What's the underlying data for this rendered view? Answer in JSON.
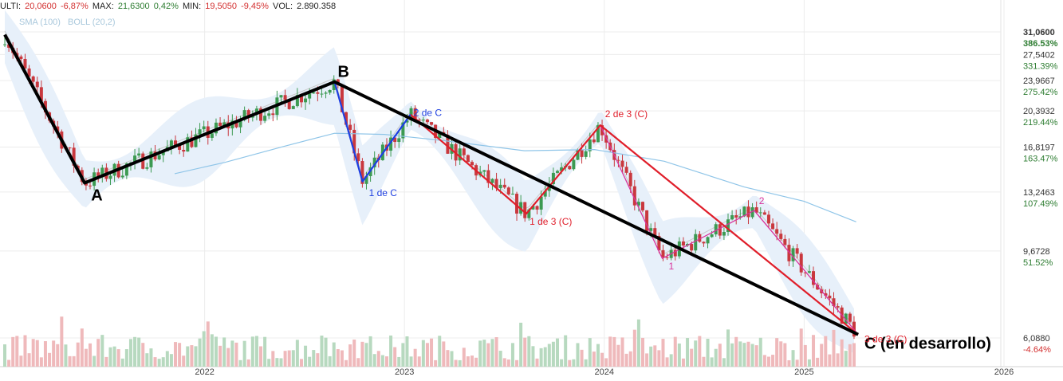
{
  "header": {
    "ulti_label": "ULTI:",
    "ulti_value": "20,0600",
    "ulti_change": "-6,87%",
    "max_label": "MAX:",
    "max_value": "21,6300",
    "max_change": "0,42%",
    "min_label": "MIN:",
    "min_value": "19,5050",
    "min_change": "-9,45%",
    "vol_label": "VOL:",
    "vol_value": "2.890.358"
  },
  "indicators": {
    "sma": "SMA (100)",
    "boll": "BOLL (20,2)"
  },
  "chart_data": {
    "type": "candlestick",
    "y_axis": {
      "scale": "log",
      "price_ticks": [
        "31,0600",
        "27,5402",
        "23,9667",
        "20,3932",
        "16,8197",
        "13,2463",
        "9,6728",
        "6,0880"
      ],
      "price_values": [
        31.06,
        27.5402,
        23.9667,
        20.3932,
        16.8197,
        13.2463,
        9.6728,
        6.088
      ],
      "pct_ticks": [
        "386.53%",
        "331.39%",
        "275.42%",
        "219.44%",
        "163.47%",
        "107.49%",
        "51.52%",
        "-4.64%"
      ]
    },
    "x_axis": {
      "tick_labels": [
        "2022",
        "2023",
        "2024",
        "2025",
        "2026"
      ],
      "tick_values": [
        2022,
        2023,
        2024,
        2025,
        2026
      ],
      "range": [
        2021.0,
        2026.15
      ]
    },
    "wave_points": [
      {
        "label": "",
        "t": 2021.0,
        "price": 30.6
      },
      {
        "label": "A",
        "t": 2021.4,
        "price": 13.9
      },
      {
        "label": "B",
        "t": 2022.65,
        "price": 23.8
      },
      {
        "label": "C (en desarrollo)",
        "t": 2025.27,
        "price": 6.2
      }
    ],
    "sub_waves_blue": [
      {
        "label": "",
        "t": 2022.65,
        "price": 23.8
      },
      {
        "label": "1 de C",
        "t": 2022.79,
        "price": 14.0
      },
      {
        "label": "2 de C",
        "t": 2023.03,
        "price": 20.0
      }
    ],
    "sub_waves_red": [
      {
        "label": "",
        "t": 2023.03,
        "price": 20.0
      },
      {
        "label": "1 de 3 (C)",
        "t": 2023.61,
        "price": 11.8
      },
      {
        "label": "2 de 3 (C)",
        "t": 2023.98,
        "price": 18.9
      },
      {
        "label": "3 de 3 (C)",
        "t": 2025.27,
        "price": 6.2
      }
    ],
    "sub_waves_magenta": [
      {
        "label": "",
        "t": 2023.98,
        "price": 18.9
      },
      {
        "label": "1",
        "t": 2024.29,
        "price": 9.3
      },
      {
        "label": "2",
        "t": 2024.75,
        "price": 12.0
      },
      {
        "label": "",
        "t": 2025.27,
        "price": 6.2
      }
    ],
    "sma_100": [
      {
        "t": 2021.85,
        "price": 14.6
      },
      {
        "t": 2022.1,
        "price": 15.5
      },
      {
        "t": 2022.4,
        "price": 16.9
      },
      {
        "t": 2022.65,
        "price": 18.1
      },
      {
        "t": 2022.9,
        "price": 18.0
      },
      {
        "t": 2023.2,
        "price": 17.4
      },
      {
        "t": 2023.6,
        "price": 16.5
      },
      {
        "t": 2023.95,
        "price": 16.6
      },
      {
        "t": 2024.3,
        "price": 15.6
      },
      {
        "t": 2024.7,
        "price": 13.6
      },
      {
        "t": 2025.0,
        "price": 12.6
      },
      {
        "t": 2025.26,
        "price": 11.3
      }
    ],
    "annotation_colors": {
      "main": "#000000",
      "blue": "#1e3fe0",
      "red": "#e01e2a",
      "magenta": "#d8329b"
    },
    "candle_colors": {
      "up": "#3c9a52",
      "down": "#c9383e"
    }
  }
}
